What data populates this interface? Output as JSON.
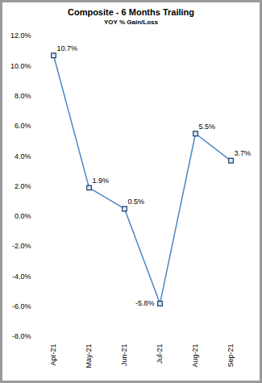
{
  "chart_data": {
    "type": "line",
    "title": "Composite - 6 Months Trailing",
    "subtitle": "YOY % Gain/Loss",
    "categories": [
      "Apr-21",
      "May-21",
      "Jun-21",
      "Jul-21",
      "Aug-21",
      "Sep-21"
    ],
    "values": [
      10.7,
      1.9,
      0.5,
      -5.8,
      5.5,
      3.7
    ],
    "value_labels": [
      "10.7%",
      "1.9%",
      "0.5%",
      "-5.8%",
      "5.5%",
      "3.7%"
    ],
    "data_labels": true,
    "color": "#4a86c5",
    "marker": "square",
    "ylim": [
      -8,
      12
    ],
    "yticks": [
      {
        "value": -8,
        "label": "-8.0%"
      },
      {
        "value": -6,
        "label": "-6.0%"
      },
      {
        "value": -4,
        "label": "-4.0%"
      },
      {
        "value": -2,
        "label": "-2.0%"
      },
      {
        "value": 0,
        "label": "0.0%"
      },
      {
        "value": 2,
        "label": "2.0%"
      },
      {
        "value": 4,
        "label": "4.0%"
      },
      {
        "value": 6,
        "label": "6.0%"
      },
      {
        "value": 8,
        "label": "8.0%"
      },
      {
        "value": 10,
        "label": "10.0%"
      },
      {
        "value": 12,
        "label": "12.0%"
      }
    ],
    "grid": false
  }
}
